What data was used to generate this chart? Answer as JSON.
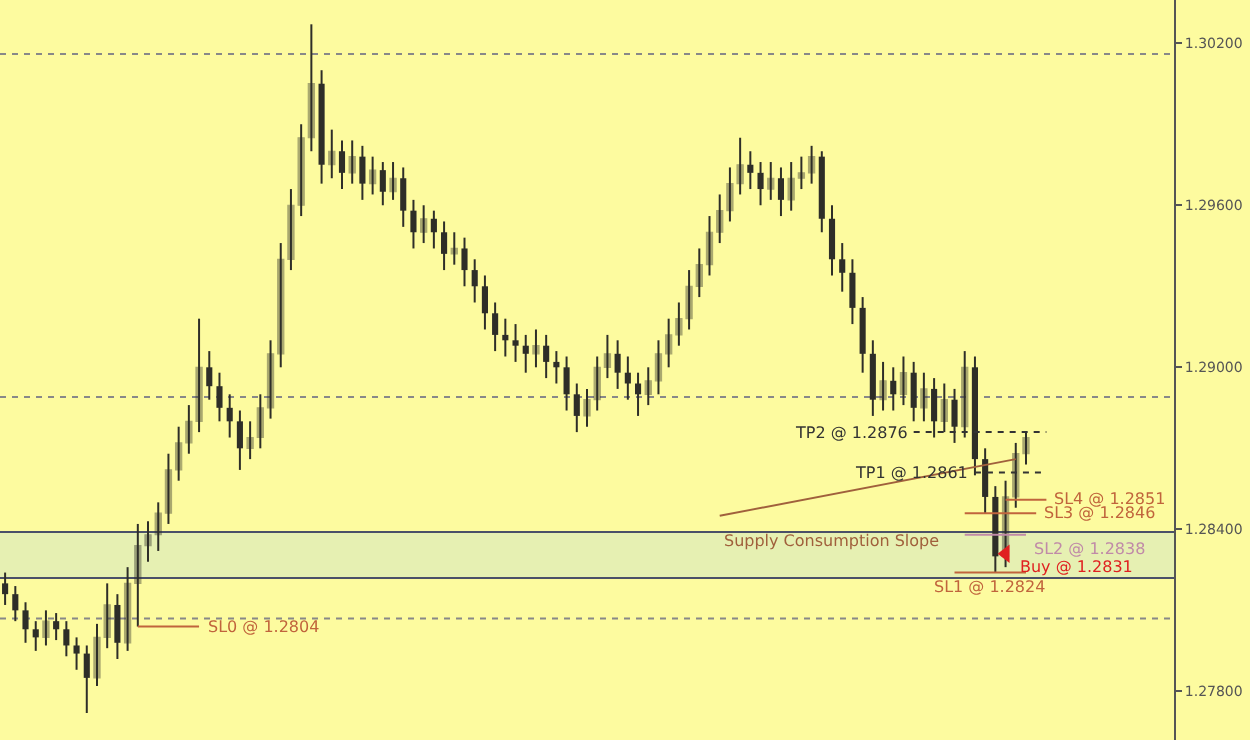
{
  "chart_data": {
    "type": "candlestick",
    "categories": [
      null,
      null,
      null,
      null,
      null,
      null,
      null,
      null,
      null,
      null,
      null,
      null,
      null,
      null,
      null,
      null,
      null,
      null,
      null,
      null,
      null,
      null,
      null,
      null,
      null,
      null,
      null,
      null,
      null,
      null,
      null,
      null,
      null,
      null,
      null,
      null,
      null,
      null,
      null,
      null,
      null,
      null,
      null,
      null,
      null,
      null,
      null,
      null,
      null,
      null,
      null,
      null,
      null,
      null,
      null,
      null,
      null,
      null,
      null,
      null,
      null,
      null,
      null,
      null,
      null,
      null,
      null,
      null,
      null,
      null,
      null,
      null,
      null,
      null,
      null,
      null,
      null,
      null,
      null,
      null,
      null,
      null,
      null,
      null,
      null,
      null,
      null,
      null,
      null,
      null,
      null,
      null,
      null,
      null,
      null,
      null,
      null,
      null,
      null,
      null,
      null,
      null,
      null,
      null,
      null,
      null,
      null,
      null,
      null,
      null,
      null,
      null,
      null,
      null,
      null
    ],
    "ylim": [
      1.2762,
      1.3036
    ],
    "yticks": [
      {
        "value": 1.302,
        "label": "1.30200"
      },
      {
        "value": 1.296,
        "label": "1.29600"
      },
      {
        "value": 1.29,
        "label": "1.29000"
      },
      {
        "value": 1.284,
        "label": "1.28400"
      },
      {
        "value": 1.278,
        "label": "1.27800"
      }
    ],
    "tick_labels": "y",
    "grid": false,
    "series": [
      {
        "color": "#2e2e28",
        "ohlc": [
          [
            1.282,
            1.2824,
            1.2812,
            1.2816
          ],
          [
            1.2816,
            1.2819,
            1.2806,
            1.281
          ],
          [
            1.281,
            1.2813,
            1.2798,
            1.2803
          ],
          [
            1.2803,
            1.2806,
            1.2795,
            1.28
          ],
          [
            1.28,
            1.281,
            1.2797,
            1.2806
          ],
          [
            1.2806,
            1.2809,
            1.2799,
            1.2803
          ],
          [
            1.2803,
            1.2806,
            1.2793,
            1.2797
          ],
          [
            1.2797,
            1.28,
            1.2788,
            1.2794
          ],
          [
            1.2794,
            1.2797,
            1.2772,
            1.2785
          ],
          [
            1.2785,
            1.2805,
            1.2782,
            1.28
          ],
          [
            1.28,
            1.282,
            1.2796,
            1.2812
          ],
          [
            1.2812,
            1.2816,
            1.2792,
            1.2798
          ],
          [
            1.2798,
            1.2826,
            1.2795,
            1.282
          ],
          [
            1.282,
            1.2842,
            1.2804,
            1.2834
          ],
          [
            1.2834,
            1.2843,
            1.2828,
            1.2838
          ],
          [
            1.2838,
            1.285,
            1.2832,
            1.2846
          ],
          [
            1.2846,
            1.2868,
            1.2842,
            1.2862
          ],
          [
            1.2862,
            1.2878,
            1.2858,
            1.2872
          ],
          [
            1.2872,
            1.2886,
            1.2868,
            1.288
          ],
          [
            1.288,
            1.2918,
            1.2876,
            1.29
          ],
          [
            1.29,
            1.2906,
            1.2888,
            1.2893
          ],
          [
            1.2893,
            1.2898,
            1.288,
            1.2885
          ],
          [
            1.2885,
            1.289,
            1.2874,
            1.288
          ],
          [
            1.288,
            1.2884,
            1.2862,
            1.287
          ],
          [
            1.287,
            1.288,
            1.2866,
            1.2874
          ],
          [
            1.2874,
            1.289,
            1.287,
            1.2885
          ],
          [
            1.2885,
            1.291,
            1.2881,
            1.2905
          ],
          [
            1.2905,
            1.2946,
            1.29,
            1.294
          ],
          [
            1.294,
            1.2966,
            1.2936,
            1.296
          ],
          [
            1.296,
            1.299,
            1.2956,
            1.2985
          ],
          [
            1.2985,
            1.3027,
            1.298,
            1.3005
          ],
          [
            1.3005,
            1.301,
            1.2968,
            1.2975
          ],
          [
            1.2975,
            1.2988,
            1.297,
            1.298
          ],
          [
            1.298,
            1.2984,
            1.2966,
            1.2972
          ],
          [
            1.2972,
            1.2984,
            1.2968,
            1.2978
          ],
          [
            1.2978,
            1.2982,
            1.2962,
            1.2968
          ],
          [
            1.2968,
            1.2978,
            1.2964,
            1.2973
          ],
          [
            1.2973,
            1.2976,
            1.296,
            1.2965
          ],
          [
            1.2965,
            1.2976,
            1.2962,
            1.297
          ],
          [
            1.297,
            1.2974,
            1.2952,
            1.2958
          ],
          [
            1.2958,
            1.2962,
            1.2944,
            1.295
          ],
          [
            1.295,
            1.296,
            1.2946,
            1.2955
          ],
          [
            1.2955,
            1.2958,
            1.2944,
            1.295
          ],
          [
            1.295,
            1.2954,
            1.2936,
            1.2942
          ],
          [
            1.2942,
            1.295,
            1.2938,
            1.2944
          ],
          [
            1.2944,
            1.2948,
            1.293,
            1.2936
          ],
          [
            1.2936,
            1.294,
            1.2924,
            1.293
          ],
          [
            1.293,
            1.2934,
            1.2914,
            1.292
          ],
          [
            1.292,
            1.2924,
            1.2906,
            1.2912
          ],
          [
            1.2912,
            1.2918,
            1.2904,
            1.291
          ],
          [
            1.291,
            1.2916,
            1.2902,
            1.2908
          ],
          [
            1.2908,
            1.2912,
            1.2898,
            1.2905
          ],
          [
            1.2905,
            1.2914,
            1.29,
            1.2908
          ],
          [
            1.2908,
            1.2912,
            1.2896,
            1.2902
          ],
          [
            1.2902,
            1.2906,
            1.2894,
            1.29
          ],
          [
            1.29,
            1.2904,
            1.2884,
            1.289
          ],
          [
            1.289,
            1.2894,
            1.2876,
            1.2882
          ],
          [
            1.2882,
            1.2892,
            1.2878,
            1.2888
          ],
          [
            1.2888,
            1.2904,
            1.2884,
            1.29
          ],
          [
            1.29,
            1.2912,
            1.2896,
            1.2905
          ],
          [
            1.2905,
            1.291,
            1.2892,
            1.2898
          ],
          [
            1.2898,
            1.2904,
            1.2888,
            1.2894
          ],
          [
            1.2894,
            1.2898,
            1.2882,
            1.289
          ],
          [
            1.289,
            1.29,
            1.2886,
            1.2895
          ],
          [
            1.2895,
            1.291,
            1.289,
            1.2905
          ],
          [
            1.2905,
            1.2918,
            1.29,
            1.2912
          ],
          [
            1.2912,
            1.2924,
            1.2908,
            1.2918
          ],
          [
            1.2918,
            1.2936,
            1.2914,
            1.293
          ],
          [
            1.293,
            1.2944,
            1.2926,
            1.2938
          ],
          [
            1.2938,
            1.2956,
            1.2934,
            1.295
          ],
          [
            1.295,
            1.2964,
            1.2946,
            1.2958
          ],
          [
            1.2958,
            1.2974,
            1.2954,
            1.2968
          ],
          [
            1.2968,
            1.2985,
            1.2964,
            1.2975
          ],
          [
            1.2975,
            1.298,
            1.2966,
            1.2972
          ],
          [
            1.2972,
            1.2976,
            1.296,
            1.2966
          ],
          [
            1.2966,
            1.2976,
            1.2962,
            1.297
          ],
          [
            1.297,
            1.2974,
            1.2956,
            1.2962
          ],
          [
            1.2962,
            1.2976,
            1.2958,
            1.297
          ],
          [
            1.297,
            1.2978,
            1.2966,
            1.2972
          ],
          [
            1.2972,
            1.2982,
            1.2968,
            1.2978
          ],
          [
            1.2978,
            1.298,
            1.295,
            1.2955
          ],
          [
            1.2955,
            1.296,
            1.2934,
            1.294
          ],
          [
            1.294,
            1.2946,
            1.2928,
            1.2935
          ],
          [
            1.2935,
            1.294,
            1.2916,
            1.2922
          ],
          [
            1.2922,
            1.2926,
            1.2898,
            1.2905
          ],
          [
            1.2905,
            1.291,
            1.2882,
            1.2888
          ],
          [
            1.2888,
            1.2902,
            1.2884,
            1.2895
          ],
          [
            1.2895,
            1.29,
            1.2884,
            1.289
          ],
          [
            1.289,
            1.2904,
            1.2886,
            1.2898
          ],
          [
            1.2898,
            1.2902,
            1.288,
            1.2885
          ],
          [
            1.2885,
            1.2898,
            1.288,
            1.2892
          ],
          [
            1.2892,
            1.2896,
            1.2874,
            1.288
          ],
          [
            1.288,
            1.2894,
            1.2876,
            1.2888
          ],
          [
            1.2888,
            1.2892,
            1.2872,
            1.2878
          ],
          [
            1.2878,
            1.2906,
            1.2874,
            1.29
          ],
          [
            1.29,
            1.2904,
            1.286,
            1.2866
          ],
          [
            1.2866,
            1.287,
            1.2846,
            1.2852
          ],
          [
            1.2852,
            1.2856,
            1.2824,
            1.283
          ],
          [
            1.283,
            1.2858,
            1.2826,
            1.2852
          ],
          [
            1.2852,
            1.2872,
            1.2848,
            1.2868
          ],
          [
            1.2868,
            1.2876,
            1.2864,
            1.2874
          ],
          null,
          null,
          null,
          null,
          null,
          null,
          null,
          null,
          null,
          null,
          null,
          null,
          null,
          null
        ]
      },
      {
        "type": "line",
        "name": "SL0 @ 1.2804",
        "color": "#c0643c",
        "line_style": "solid",
        "values": [
          null,
          null,
          null,
          null,
          null,
          null,
          null,
          null,
          null,
          null,
          null,
          null,
          null,
          1.2804,
          1.2804,
          1.2804,
          1.2804,
          1.2804,
          1.2804,
          1.2804,
          null,
          null,
          null,
          null,
          null,
          null,
          null,
          null,
          null,
          null,
          null,
          null,
          null,
          null,
          null,
          null,
          null,
          null,
          null,
          null,
          null,
          null,
          null,
          null,
          null,
          null,
          null,
          null,
          null,
          null,
          null,
          null,
          null,
          null,
          null,
          null,
          null,
          null,
          null,
          null,
          null,
          null,
          null,
          null,
          null,
          null,
          null,
          null,
          null,
          null,
          null,
          null,
          null,
          null,
          null,
          null,
          null,
          null,
          null,
          null,
          null,
          null,
          null,
          null,
          null,
          null,
          null,
          null,
          null,
          null,
          null,
          null,
          null,
          null,
          null,
          null,
          null,
          null,
          null,
          null,
          null,
          null,
          null,
          null,
          null,
          null,
          null,
          null,
          null,
          null,
          null,
          null,
          null,
          null,
          null
        ]
      },
      {
        "type": "line",
        "name": "SL1 @ 1.2824",
        "color": "#c0643c",
        "line_style": "solid",
        "values": [
          null,
          null,
          null,
          null,
          null,
          null,
          null,
          null,
          null,
          null,
          null,
          null,
          null,
          null,
          null,
          null,
          null,
          null,
          null,
          null,
          null,
          null,
          null,
          null,
          null,
          null,
          null,
          null,
          null,
          null,
          null,
          null,
          null,
          null,
          null,
          null,
          null,
          null,
          null,
          null,
          null,
          null,
          null,
          null,
          null,
          null,
          null,
          null,
          null,
          null,
          null,
          null,
          null,
          null,
          null,
          null,
          null,
          null,
          null,
          null,
          null,
          null,
          null,
          null,
          null,
          null,
          null,
          null,
          null,
          null,
          null,
          null,
          null,
          null,
          null,
          null,
          null,
          null,
          null,
          null,
          null,
          null,
          null,
          null,
          null,
          null,
          null,
          null,
          null,
          null,
          null,
          null,
          null,
          1.2824,
          1.2824,
          1.2824,
          1.2824,
          1.2824,
          1.2824,
          1.2824,
          1.2824,
          null,
          null,
          null,
          null,
          null,
          null,
          null,
          null,
          null,
          null,
          null,
          null,
          null,
          null
        ]
      },
      {
        "type": "line",
        "name": "SL2 @ 1.2838",
        "color": "#c08aa8",
        "line_style": "solid",
        "values": [
          null,
          null,
          null,
          null,
          null,
          null,
          null,
          null,
          null,
          null,
          null,
          null,
          null,
          null,
          null,
          null,
          null,
          null,
          null,
          null,
          null,
          null,
          null,
          null,
          null,
          null,
          null,
          null,
          null,
          null,
          null,
          null,
          null,
          null,
          null,
          null,
          null,
          null,
          null,
          null,
          null,
          null,
          null,
          null,
          null,
          null,
          null,
          null,
          null,
          null,
          null,
          null,
          null,
          null,
          null,
          null,
          null,
          null,
          null,
          null,
          null,
          null,
          null,
          null,
          null,
          null,
          null,
          null,
          null,
          null,
          null,
          null,
          null,
          null,
          null,
          null,
          null,
          null,
          null,
          null,
          null,
          null,
          null,
          null,
          null,
          null,
          null,
          null,
          null,
          null,
          null,
          null,
          null,
          null,
          1.2838,
          1.2838,
          1.2838,
          1.2838,
          1.2838,
          1.2838,
          1.2838,
          null,
          null,
          null,
          null,
          null,
          null,
          null,
          null,
          null,
          null,
          null,
          null,
          null,
          null
        ]
      },
      {
        "type": "line",
        "name": "SL3 @ 1.2846",
        "color": "#c0643c",
        "line_style": "solid",
        "values": [
          null,
          null,
          null,
          null,
          null,
          null,
          null,
          null,
          null,
          null,
          null,
          null,
          null,
          null,
          null,
          null,
          null,
          null,
          null,
          null,
          null,
          null,
          null,
          null,
          null,
          null,
          null,
          null,
          null,
          null,
          null,
          null,
          null,
          null,
          null,
          null,
          null,
          null,
          null,
          null,
          null,
          null,
          null,
          null,
          null,
          null,
          null,
          null,
          null,
          null,
          null,
          null,
          null,
          null,
          null,
          null,
          null,
          null,
          null,
          null,
          null,
          null,
          null,
          null,
          null,
          null,
          null,
          null,
          null,
          null,
          null,
          null,
          null,
          null,
          null,
          null,
          null,
          null,
          null,
          null,
          null,
          null,
          null,
          null,
          null,
          null,
          null,
          null,
          null,
          null,
          null,
          null,
          null,
          null,
          1.2846,
          1.2846,
          1.2846,
          1.2846,
          1.2846,
          1.2846,
          1.2846,
          1.2846,
          null,
          null,
          null,
          null,
          null,
          null,
          null,
          null,
          null,
          null,
          null,
          null,
          null
        ]
      },
      {
        "type": "line",
        "name": "SL4 @ 1.2851",
        "color": "#c0643c",
        "line_style": "solid",
        "values": [
          null,
          null,
          null,
          null,
          null,
          null,
          null,
          null,
          null,
          null,
          null,
          null,
          null,
          null,
          null,
          null,
          null,
          null,
          null,
          null,
          null,
          null,
          null,
          null,
          null,
          null,
          null,
          null,
          null,
          null,
          null,
          null,
          null,
          null,
          null,
          null,
          null,
          null,
          null,
          null,
          null,
          null,
          null,
          null,
          null,
          null,
          null,
          null,
          null,
          null,
          null,
          null,
          null,
          null,
          null,
          null,
          null,
          null,
          null,
          null,
          null,
          null,
          null,
          null,
          null,
          null,
          null,
          null,
          null,
          null,
          null,
          null,
          null,
          null,
          null,
          null,
          null,
          null,
          null,
          null,
          null,
          null,
          null,
          null,
          null,
          null,
          null,
          null,
          null,
          null,
          null,
          null,
          null,
          null,
          null,
          null,
          null,
          null,
          1.2851,
          1.2851,
          1.2851,
          1.2851,
          1.2851,
          null,
          null,
          null,
          null,
          null,
          null,
          null,
          null,
          null,
          null,
          null,
          null
        ]
      },
      {
        "type": "scatter",
        "name": "Buy @ 1.2831",
        "color": "#e02020",
        "marker": "triangle",
        "values": [
          null,
          null,
          null,
          null,
          null,
          null,
          null,
          null,
          null,
          null,
          null,
          null,
          null,
          null,
          null,
          null,
          null,
          null,
          null,
          null,
          null,
          null,
          null,
          null,
          null,
          null,
          null,
          null,
          null,
          null,
          null,
          null,
          null,
          null,
          null,
          null,
          null,
          null,
          null,
          null,
          null,
          null,
          null,
          null,
          null,
          null,
          null,
          null,
          null,
          null,
          null,
          null,
          null,
          null,
          null,
          null,
          null,
          null,
          null,
          null,
          null,
          null,
          null,
          null,
          null,
          null,
          null,
          null,
          null,
          null,
          null,
          null,
          null,
          null,
          null,
          null,
          null,
          null,
          null,
          null,
          null,
          null,
          null,
          null,
          null,
          null,
          null,
          null,
          null,
          null,
          null,
          null,
          null,
          null,
          null,
          null,
          null,
          null,
          1.2831,
          null,
          null,
          null,
          null,
          null,
          null,
          null,
          null,
          null,
          null,
          null,
          null,
          null,
          null,
          null,
          null
        ]
      },
      {
        "type": "line",
        "name": "TP1 @ 1.2861",
        "color": "#333333",
        "line_style": "dotted",
        "values": [
          null,
          null,
          null,
          null,
          null,
          null,
          null,
          null,
          null,
          null,
          null,
          null,
          null,
          null,
          null,
          null,
          null,
          null,
          null,
          null,
          null,
          null,
          null,
          null,
          null,
          null,
          null,
          null,
          null,
          null,
          null,
          null,
          null,
          null,
          null,
          null,
          null,
          null,
          null,
          null,
          null,
          null,
          null,
          null,
          null,
          null,
          null,
          null,
          null,
          null,
          null,
          null,
          null,
          null,
          null,
          null,
          null,
          null,
          null,
          null,
          null,
          null,
          null,
          null,
          null,
          null,
          null,
          null,
          null,
          null,
          null,
          null,
          null,
          null,
          null,
          null,
          null,
          null,
          null,
          null,
          null,
          null,
          null,
          null,
          null,
          null,
          null,
          null,
          null,
          null,
          null,
          null,
          null,
          null,
          null,
          1.2861,
          1.2861,
          1.2861,
          1.2861,
          1.2861,
          1.2861,
          1.2861,
          1.2861,
          null,
          null,
          null,
          null,
          null,
          null,
          null,
          null,
          null,
          null,
          null,
          null
        ]
      },
      {
        "type": "line",
        "name": "TP2 @ 1.2876",
        "color": "#333333",
        "line_style": "dotted",
        "values": [
          null,
          null,
          null,
          null,
          null,
          null,
          null,
          null,
          null,
          null,
          null,
          null,
          null,
          null,
          null,
          null,
          null,
          null,
          null,
          null,
          null,
          null,
          null,
          null,
          null,
          null,
          null,
          null,
          null,
          null,
          null,
          null,
          null,
          null,
          null,
          null,
          null,
          null,
          null,
          null,
          null,
          null,
          null,
          null,
          null,
          null,
          null,
          null,
          null,
          null,
          null,
          null,
          null,
          null,
          null,
          null,
          null,
          null,
          null,
          null,
          null,
          null,
          null,
          null,
          null,
          null,
          null,
          null,
          null,
          null,
          null,
          null,
          null,
          null,
          null,
          null,
          null,
          null,
          null,
          null,
          null,
          null,
          null,
          null,
          null,
          null,
          null,
          null,
          null,
          1.2876,
          1.2876,
          1.2876,
          1.2876,
          1.2876,
          1.2876,
          1.2876,
          1.2876,
          1.2876,
          1.2876,
          1.2876,
          1.2876,
          1.2876,
          1.2876,
          null,
          null,
          null,
          null,
          null,
          null,
          null,
          null,
          null,
          null,
          null,
          null
        ]
      },
      {
        "type": "line",
        "name": "Supply Consumption Slope",
        "color": "#a0603c",
        "line_style": "solid",
        "values": [
          null,
          null,
          null,
          null,
          null,
          null,
          null,
          null,
          null,
          null,
          null,
          null,
          null,
          null,
          null,
          null,
          null,
          null,
          null,
          null,
          null,
          null,
          null,
          null,
          null,
          null,
          null,
          null,
          null,
          null,
          null,
          null,
          null,
          null,
          null,
          null,
          null,
          null,
          null,
          null,
          null,
          null,
          null,
          null,
          null,
          null,
          null,
          null,
          null,
          null,
          null,
          null,
          null,
          null,
          null,
          null,
          null,
          null,
          null,
          null,
          null,
          null,
          null,
          null,
          null,
          null,
          null,
          null,
          null,
          null,
          1.2845,
          null,
          null,
          null,
          null,
          null,
          null,
          null,
          null,
          null,
          null,
          null,
          null,
          null,
          null,
          null,
          null,
          null,
          null,
          null,
          null,
          null,
          null,
          null,
          null,
          null,
          null,
          null,
          null,
          1.2866,
          null,
          null,
          null,
          null,
          null,
          null,
          null,
          null,
          null,
          null,
          null,
          null,
          null,
          null,
          null
        ]
      }
    ],
    "bands": [
      {
        "axis": "y",
        "from": 1.2822,
        "to": 1.2839,
        "color": "#e6f0b2"
      }
    ],
    "ref_lines": [
      {
        "axis": "y",
        "value": 1.2839,
        "color": "#4a5068",
        "line_style": "solid"
      },
      {
        "axis": "y",
        "value": 1.2822,
        "color": "#4a5068",
        "line_style": "solid"
      },
      {
        "axis": "y",
        "value": 1.3016,
        "color": "#888888",
        "line_style": "dotted"
      },
      {
        "axis": "y",
        "value": 1.2889,
        "color": "#888888",
        "line_style": "dotted"
      },
      {
        "axis": "y",
        "value": 1.2807,
        "color": "#888888",
        "line_style": "dotted"
      }
    ]
  }
}
